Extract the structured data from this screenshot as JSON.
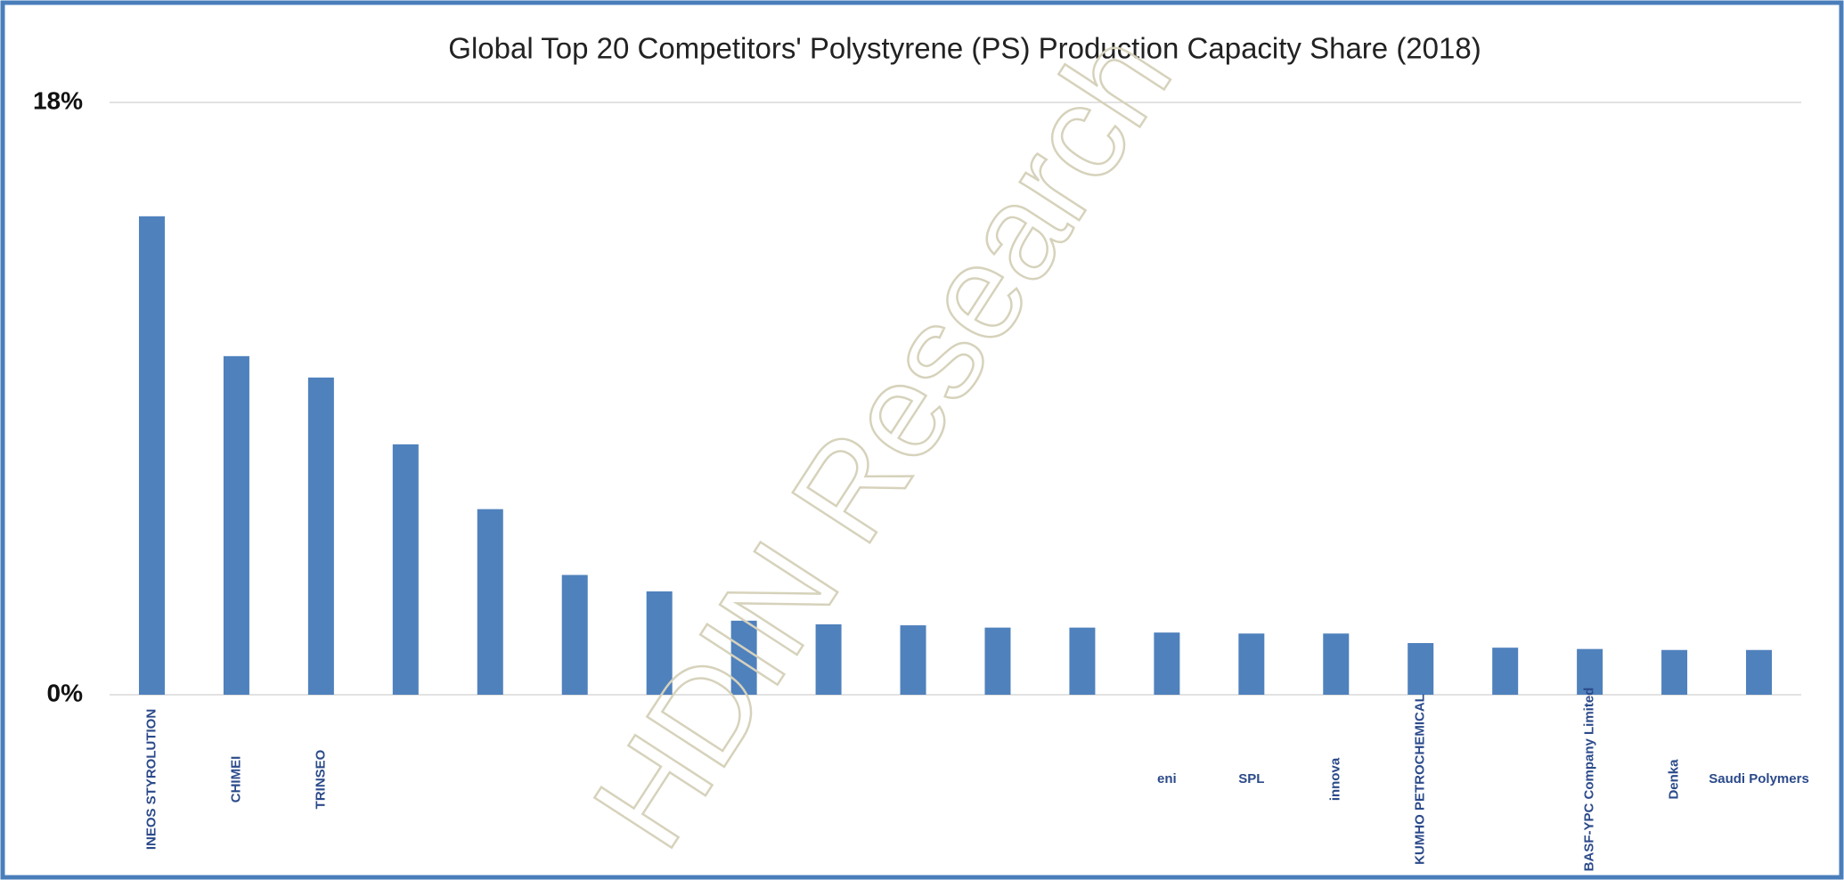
{
  "chart_data": {
    "type": "bar",
    "title": "Global Top 20 Competitors' Polystyrene (PS) Production Capacity Share (2018)",
    "watermark": "HDIN Research",
    "categories": [
      "INEOS STYROLUTION",
      "CHIMEI",
      "TRINSEO",
      null,
      null,
      null,
      null,
      null,
      null,
      null,
      null,
      null,
      "eni",
      "SPL",
      "innova",
      "KUMHO PETROCHEMICAL",
      null,
      "BASF-YPC Company Limited",
      "Denka",
      "Saudi Polymers"
    ],
    "values": [
      14.54,
      10.29,
      9.64,
      7.61,
      5.64,
      3.64,
      3.14,
      2.25,
      2.14,
      2.11,
      2.04,
      2.04,
      1.89,
      1.86,
      1.86,
      1.57,
      1.43,
      1.39,
      1.36,
      1.36
    ],
    "color": "#4f81bd",
    "ylim": [
      0,
      18
    ],
    "yticks": [
      {
        "value": 0,
        "label": "0%"
      },
      {
        "value": 18,
        "label": "18%"
      }
    ],
    "grid": true
  }
}
